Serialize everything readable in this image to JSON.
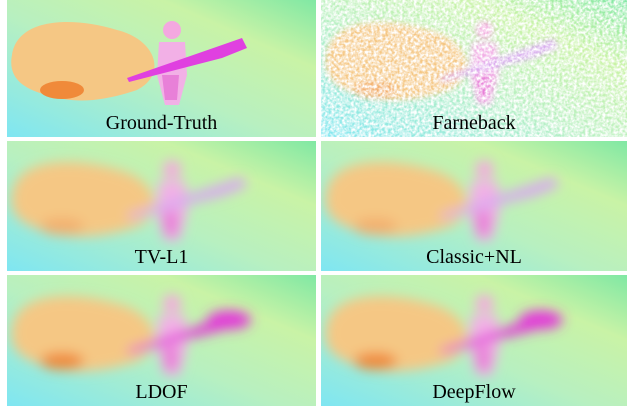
{
  "panels": [
    {
      "label": "Ground-Truth"
    },
    {
      "label": "Farneback"
    },
    {
      "label": "TV-L1"
    },
    {
      "label": "Classic+NL"
    },
    {
      "label": "LDOF"
    },
    {
      "label": "DeepFlow"
    }
  ]
}
